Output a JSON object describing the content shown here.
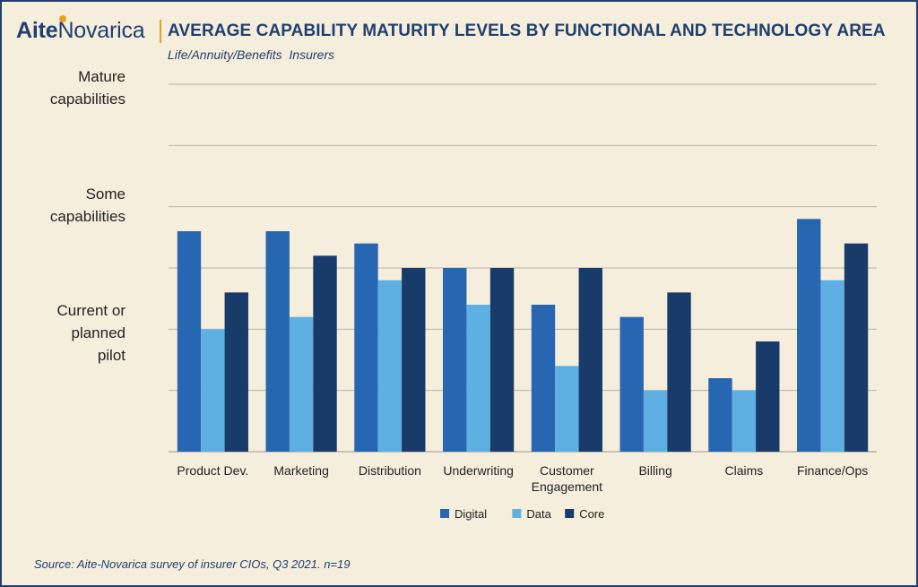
{
  "header": {
    "logo_aite": "Aite",
    "logo_novarica": "Novarica",
    "title": "AVERAGE CAPABILITY MATURITY LEVELS BY FUNCTIONAL AND TECHNOLOGY AREA",
    "subtitle": "Life/Annuity/Benefits  Insurers"
  },
  "y_levels": {
    "mature": [
      "Mature",
      "capabilities"
    ],
    "some": [
      "Some",
      "capabilities"
    ],
    "pilot": [
      "Current or",
      "planned",
      "pilot"
    ]
  },
  "source": "Source: Aite-Novarica survey of insurer CIOs, Q3 2021. n=19",
  "colors": {
    "background": "#f6eedd",
    "brand": "#1f3f6e",
    "accent": "#e8a21a",
    "grid": "#b7b3ab"
  },
  "chart_data": {
    "type": "bar",
    "categories": [
      [
        "Product Dev."
      ],
      [
        "Marketing"
      ],
      [
        "Distribution"
      ],
      [
        "Underwriting"
      ],
      [
        "Customer",
        "Engagement"
      ],
      [
        "Billing"
      ],
      [
        "Claims"
      ],
      [
        "Finance/Ops"
      ]
    ],
    "series": [
      {
        "name": "Digital",
        "color": "#2766b0",
        "values": [
          3.6,
          3.6,
          3.4,
          3.0,
          2.4,
          2.2,
          1.2,
          3.8
        ]
      },
      {
        "name": "Data",
        "color": "#5eb0e3",
        "values": [
          2.0,
          2.2,
          2.8,
          2.4,
          1.4,
          1.0,
          1.0,
          2.8
        ]
      },
      {
        "name": "Core",
        "color": "#193b69",
        "values": [
          2.6,
          3.2,
          3.0,
          3.0,
          3.0,
          2.6,
          1.8,
          3.4
        ]
      }
    ],
    "ylim": [
      0,
      6
    ],
    "grid": true,
    "legend": "bottom-center"
  }
}
